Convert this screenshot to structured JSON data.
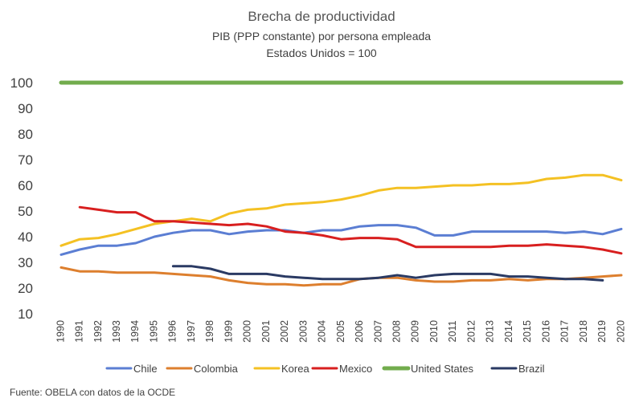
{
  "chart_data": {
    "type": "line",
    "title": "Brecha de productividad",
    "subtitle": "PIB (PPP constante) por persona empleada",
    "subtitle2": "Estados Unidos = 100",
    "ylim": [
      10,
      100
    ],
    "yticks": [
      10,
      20,
      30,
      40,
      50,
      60,
      70,
      80,
      90,
      100
    ],
    "grid": false,
    "legend_position": "bottom",
    "x": [
      "1990",
      "1991",
      "1992",
      "1993",
      "1994",
      "1995",
      "1996",
      "1997",
      "1998",
      "1999",
      "2000",
      "2001",
      "2002",
      "2003",
      "2004",
      "2005",
      "2006",
      "2007",
      "2008",
      "2009",
      "2010",
      "2011",
      "2012",
      "2013",
      "2014",
      "2015",
      "2016",
      "2017",
      "2018",
      "2019",
      "2020"
    ],
    "series": [
      {
        "name": "Chile",
        "color": "#5b7ed3",
        "values": [
          33.0,
          35.0,
          36.5,
          36.5,
          37.5,
          40.0,
          41.5,
          42.5,
          42.5,
          41.0,
          42.0,
          42.5,
          42.5,
          41.5,
          42.5,
          42.5,
          44.0,
          44.5,
          44.5,
          43.5,
          40.5,
          40.5,
          42.0,
          42.0,
          42.0,
          42.0,
          42.0,
          41.5,
          42.0,
          41.0,
          43.0
        ]
      },
      {
        "name": "Colombia",
        "color": "#dd7f2e",
        "values": [
          28.0,
          26.5,
          26.5,
          26.0,
          26.0,
          26.0,
          25.5,
          25.0,
          24.5,
          23.0,
          22.0,
          21.5,
          21.5,
          21.0,
          21.5,
          21.5,
          23.5,
          24.0,
          24.0,
          23.0,
          22.5,
          22.5,
          23.0,
          23.0,
          23.5,
          23.0,
          23.5,
          23.5,
          24.0,
          24.5,
          25.0
        ]
      },
      {
        "name": "Korea",
        "color": "#f4c123",
        "values": [
          36.5,
          39.0,
          39.5,
          41.0,
          43.0,
          45.0,
          46.0,
          47.0,
          46.0,
          49.0,
          50.5,
          51.0,
          52.5,
          53.0,
          53.5,
          54.5,
          56.0,
          58.0,
          59.0,
          59.0,
          59.5,
          60.0,
          60.0,
          60.5,
          60.5,
          61.0,
          62.5,
          63.0,
          64.0,
          64.0,
          62.0
        ]
      },
      {
        "name": "Mexico",
        "color": "#d81f1f",
        "values": [
          null,
          51.5,
          50.5,
          49.5,
          49.5,
          46.0,
          46.0,
          45.5,
          45.0,
          44.5,
          45.0,
          44.0,
          42.0,
          41.5,
          40.5,
          39.0,
          39.5,
          39.5,
          39.0,
          36.0,
          36.0,
          36.0,
          36.0,
          36.0,
          36.5,
          36.5,
          37.0,
          36.5,
          36.0,
          35.0,
          33.5
        ]
      },
      {
        "name": "United States",
        "color": "#72ac4d",
        "values": [
          100,
          100,
          100,
          100,
          100,
          100,
          100,
          100,
          100,
          100,
          100,
          100,
          100,
          100,
          100,
          100,
          100,
          100,
          100,
          100,
          100,
          100,
          100,
          100,
          100,
          100,
          100,
          100,
          100,
          100,
          100
        ]
      },
      {
        "name": "Brazil",
        "color": "#2a3a63",
        "values": [
          null,
          null,
          null,
          null,
          null,
          null,
          28.5,
          28.5,
          27.5,
          25.5,
          25.5,
          25.5,
          24.5,
          24.0,
          23.5,
          23.5,
          23.5,
          24.0,
          25.0,
          24.0,
          25.0,
          25.5,
          25.5,
          25.5,
          24.5,
          24.5,
          24.0,
          23.5,
          23.5,
          23.0,
          null
        ]
      }
    ]
  },
  "source_text": "Fuente: OBELA con datos de la OCDE"
}
